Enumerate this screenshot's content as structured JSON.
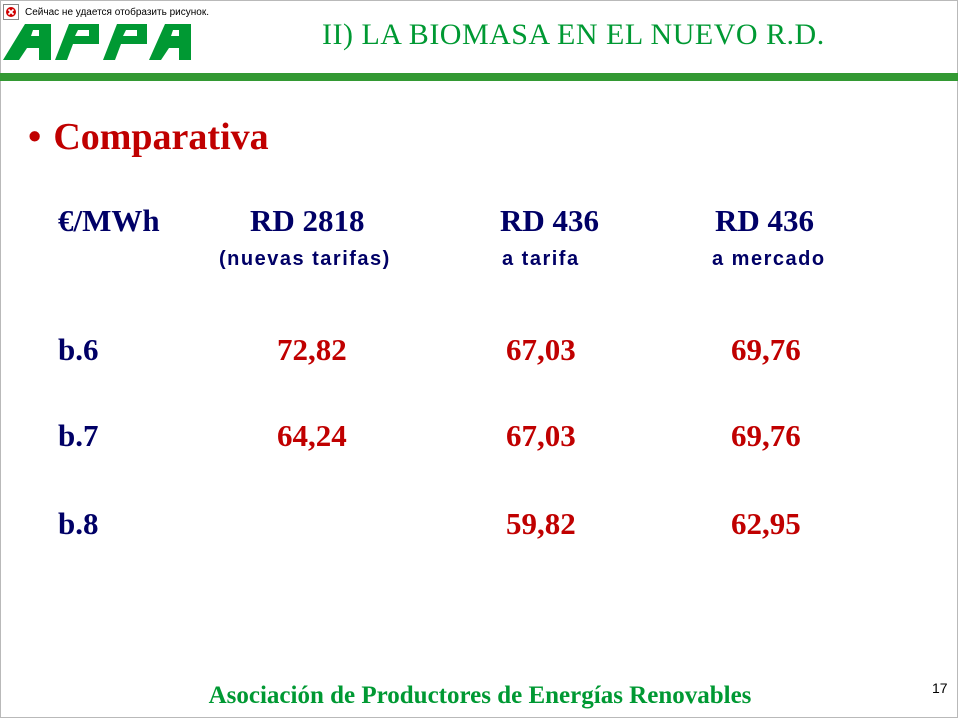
{
  "image_placeholder": {
    "text": "Сейчас не удается отобразить рисунок.",
    "icon": "broken-image-icon"
  },
  "logo": {
    "text": "APPA",
    "icon": "appa-logo",
    "color": "#009933"
  },
  "header": {
    "title": "II)  LA BIOMASA EN EL NUEVO R.D."
  },
  "heading": {
    "bullet": "•",
    "text": "Comparativa"
  },
  "table": {
    "columns": [
      {
        "title": "€/MWh",
        "subtitle": ""
      },
      {
        "title": "RD 2818",
        "subtitle": "(nuevas tarifas)"
      },
      {
        "title": "RD 436",
        "subtitle": "a tarifa"
      },
      {
        "title": "RD 436",
        "subtitle": "a mercado"
      }
    ],
    "rows": [
      {
        "label": "b.6",
        "values": [
          "72,82",
          "67,03",
          "69,76"
        ]
      },
      {
        "label": "b.7",
        "values": [
          "64,24",
          "67,03",
          "69,76"
        ]
      },
      {
        "label": "b.8",
        "values": [
          "",
          "59,82",
          "62,95"
        ]
      }
    ]
  },
  "footer": {
    "text": "Asociación de Productores de Energías Renovables"
  },
  "page_number": "17",
  "colors": {
    "accent_green": "#009933",
    "heading_red": "#c00000",
    "header_navy": "#000066"
  }
}
